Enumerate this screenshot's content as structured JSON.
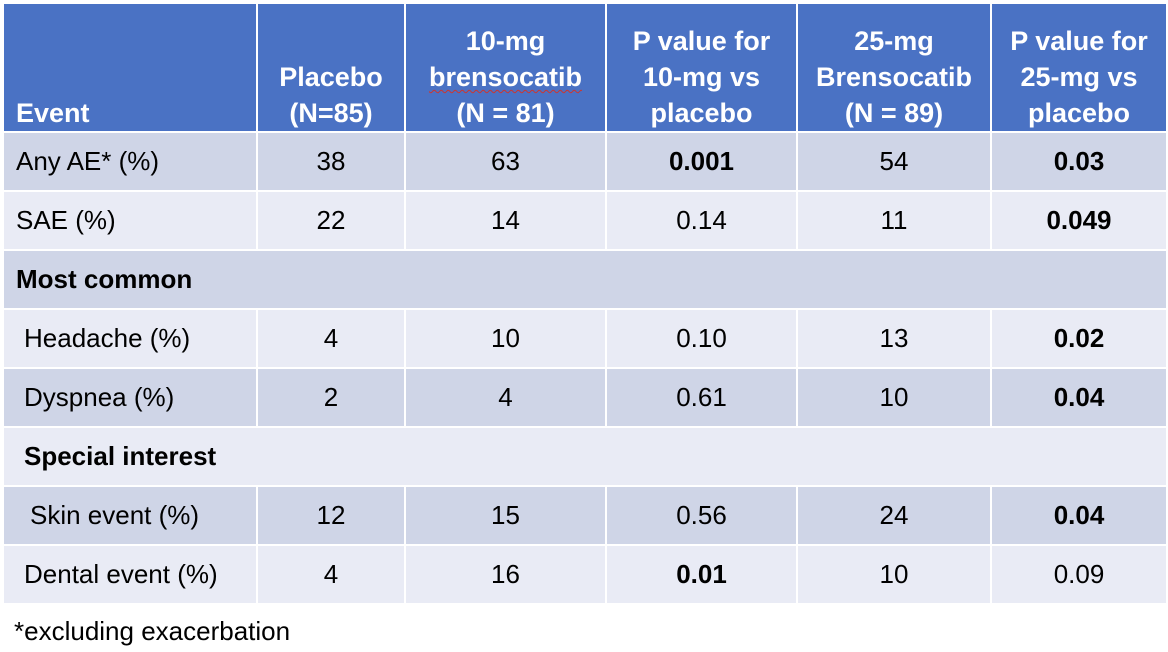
{
  "table": {
    "headers": {
      "event": "Event",
      "placebo_l1": "Placebo",
      "placebo_l2": "(N=85)",
      "b10_l1": "10-mg",
      "b10_l2": "brensocatib",
      "b10_l3": "(N = 81)",
      "p10_l1": "P value for",
      "p10_l2": "10-mg vs",
      "p10_l3": "placebo",
      "b25_l1": "25-mg",
      "b25_l2": "Brensocatib",
      "b25_l3": "(N = 89)",
      "p25_l1": "P value for",
      "p25_l2": "25-mg vs",
      "p25_l3": "placebo"
    },
    "rows": [
      {
        "label": "Any AE* (%)",
        "placebo": "38",
        "b10": "63",
        "p10": "0.001",
        "b25": "54",
        "p25": "0.03"
      },
      {
        "label": "SAE (%)",
        "placebo": "22",
        "b10": "14",
        "p10": "0.14",
        "b25": "11",
        "p25": "0.049"
      },
      {
        "section": "Most common"
      },
      {
        "label": "Headache (%)",
        "placebo": "4",
        "b10": "10",
        "p10": "0.10",
        "b25": "13",
        "p25": "0.02"
      },
      {
        "label": "Dyspnea (%)",
        "placebo": "2",
        "b10": "4",
        "p10": "0.61",
        "b25": "10",
        "p25": "0.04"
      },
      {
        "section": "Special interest"
      },
      {
        "label": "Skin event (%)",
        "placebo": "12",
        "b10": "15",
        "p10": "0.56",
        "b25": "24",
        "p25": "0.04"
      },
      {
        "label": "Dental event (%)",
        "placebo": "4",
        "b10": "16",
        "p10": "0.01",
        "b25": "10",
        "p25": "0.09"
      }
    ]
  },
  "footnote": "*excluding exacerbation",
  "colors": {
    "header_bg": "#4a72c4",
    "row_dark": "#cfd5e7",
    "row_light": "#e9ebf5",
    "header_text": "#ffffff"
  }
}
